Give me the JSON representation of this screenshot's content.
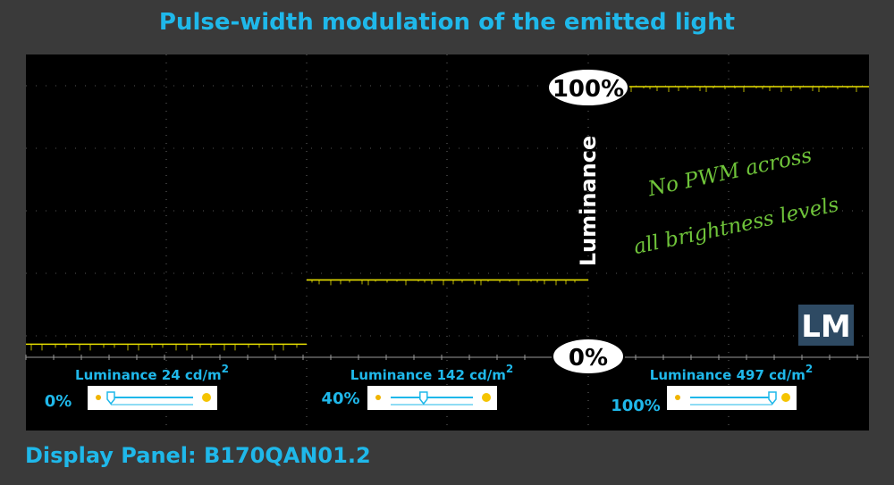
{
  "title": "Pulse-width modulation of the emitted light",
  "footer": "Display Panel: B170QAN01.2",
  "colors": {
    "accent": "#1fb8ea",
    "trace": "#e8e000",
    "note": "#6fc43a",
    "background": "#3a3a3a",
    "screen": "#000000"
  },
  "chart_data": {
    "type": "line",
    "ylabel": "Luminance",
    "marker_top": "100%",
    "marker_bottom": "0%",
    "annotation": [
      "No PWM across",
      "all brightness levels"
    ],
    "logo": "LM",
    "ylim": [
      0,
      100
    ],
    "series": [
      {
        "brightness": "0%",
        "luminance_label": "Luminance 24 cd/m",
        "superscript": "2",
        "level": 24,
        "slider": 0
      },
      {
        "brightness": "40%",
        "luminance_label": "Luminance 142 cd/m",
        "superscript": "2",
        "level": 142,
        "slider": 40
      },
      {
        "brightness": "100%",
        "luminance_label": "Luminance 497 cd/m",
        "superscript": "2",
        "level": 497,
        "slider": 100
      }
    ]
  }
}
